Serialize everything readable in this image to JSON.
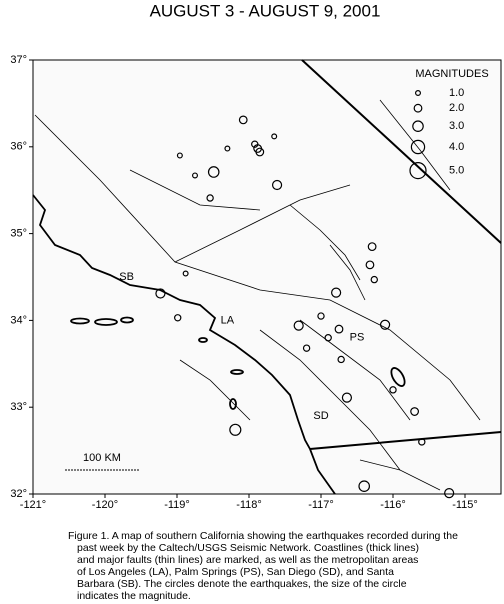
{
  "chart_data": {
    "type": "map",
    "title": "AUGUST 3 - AUGUST 9, 2001",
    "xlim": [
      -121,
      -114.5
    ],
    "ylim": [
      32,
      37
    ],
    "xticks": [
      {
        "value": -121,
        "label": "-121°"
      },
      {
        "value": -120,
        "label": "-120°"
      },
      {
        "value": -119,
        "label": "-119°"
      },
      {
        "value": -118,
        "label": "-118°"
      },
      {
        "value": -117,
        "label": "-117°"
      },
      {
        "value": -116,
        "label": "-116°"
      },
      {
        "value": -115,
        "label": "-115°"
      }
    ],
    "yticks": [
      {
        "value": 32,
        "label": "32°"
      },
      {
        "value": 33,
        "label": "33°"
      },
      {
        "value": 34,
        "label": "34°"
      },
      {
        "value": 35,
        "label": "35°"
      },
      {
        "value": 36,
        "label": "36°"
      },
      {
        "value": 37,
        "label": "37°"
      }
    ],
    "legend_title": "MAGNITUDES",
    "legend": [
      {
        "value": 1,
        "label": "1.0"
      },
      {
        "value": 2,
        "label": "2.0"
      },
      {
        "value": 3,
        "label": "3.0"
      },
      {
        "value": 4,
        "label": "4.0"
      },
      {
        "value": 5,
        "label": "5.0"
      }
    ],
    "cities": [
      {
        "label": "SB",
        "lon": -119.7,
        "lat": 34.5
      },
      {
        "label": "LA",
        "lon": -118.3,
        "lat": 34.0
      },
      {
        "label": "PS",
        "lon": -116.5,
        "lat": 33.8
      },
      {
        "label": "SD",
        "lon": -117.0,
        "lat": 32.9
      }
    ],
    "scale_bar": "100 KM",
    "earthquakes": {
      "lon": [
        -117.88,
        -117.92,
        -117.85,
        -118.49,
        -118.08,
        -117.61,
        -118.54,
        -116.32,
        -116.29,
        -116.26,
        -116.79,
        -116.75,
        -117.31,
        -119.23,
        -118.88,
        -118.99,
        -118.19,
        -116.11,
        -115.7,
        -115.22,
        -116.4,
        -115.6,
        -116.64,
        -117.2,
        -116.72,
        -116.0,
        -118.96,
        -118.75,
        -117.65,
        -118.3,
        -117.0,
        -116.9
      ],
      "lat": [
        35.98,
        36.03,
        35.94,
        35.71,
        36.31,
        35.56,
        35.41,
        34.64,
        34.85,
        34.47,
        34.32,
        33.9,
        33.94,
        34.31,
        34.54,
        34.03,
        32.74,
        33.95,
        32.95,
        32.01,
        32.09,
        32.6,
        33.11,
        33.68,
        33.55,
        33.2,
        35.9,
        35.67,
        36.12,
        35.98,
        34.05,
        33.8
      ],
      "mag": [
        2.0,
        1.5,
        2.0,
        3.0,
        2.0,
        2.5,
        1.5,
        2.0,
        2.0,
        1.5,
        2.5,
        2.0,
        2.5,
        2.5,
        1.0,
        1.5,
        3.2,
        2.5,
        2.0,
        2.5,
        3.0,
        1.5,
        2.5,
        1.5,
        1.5,
        1.5,
        1.0,
        1.0,
        1.0,
        1.0,
        1.5,
        1.5
      ]
    },
    "caption": [
      "Figure 1. A map of southern California showing the earthquakes recorded during the",
      "past week by the Caltech/USGS Seismic Network.  Coastlines (thick lines)",
      "and major faults (thin lines) are marked, as well as the metropolitan areas",
      "of Los Angeles (LA), Palm Springs (PS), San Diego (SD), and Santa",
      "Barbara (SB).  The circles denote the earthquakes, the size of the circle",
      "indicates the magnitude."
    ]
  }
}
